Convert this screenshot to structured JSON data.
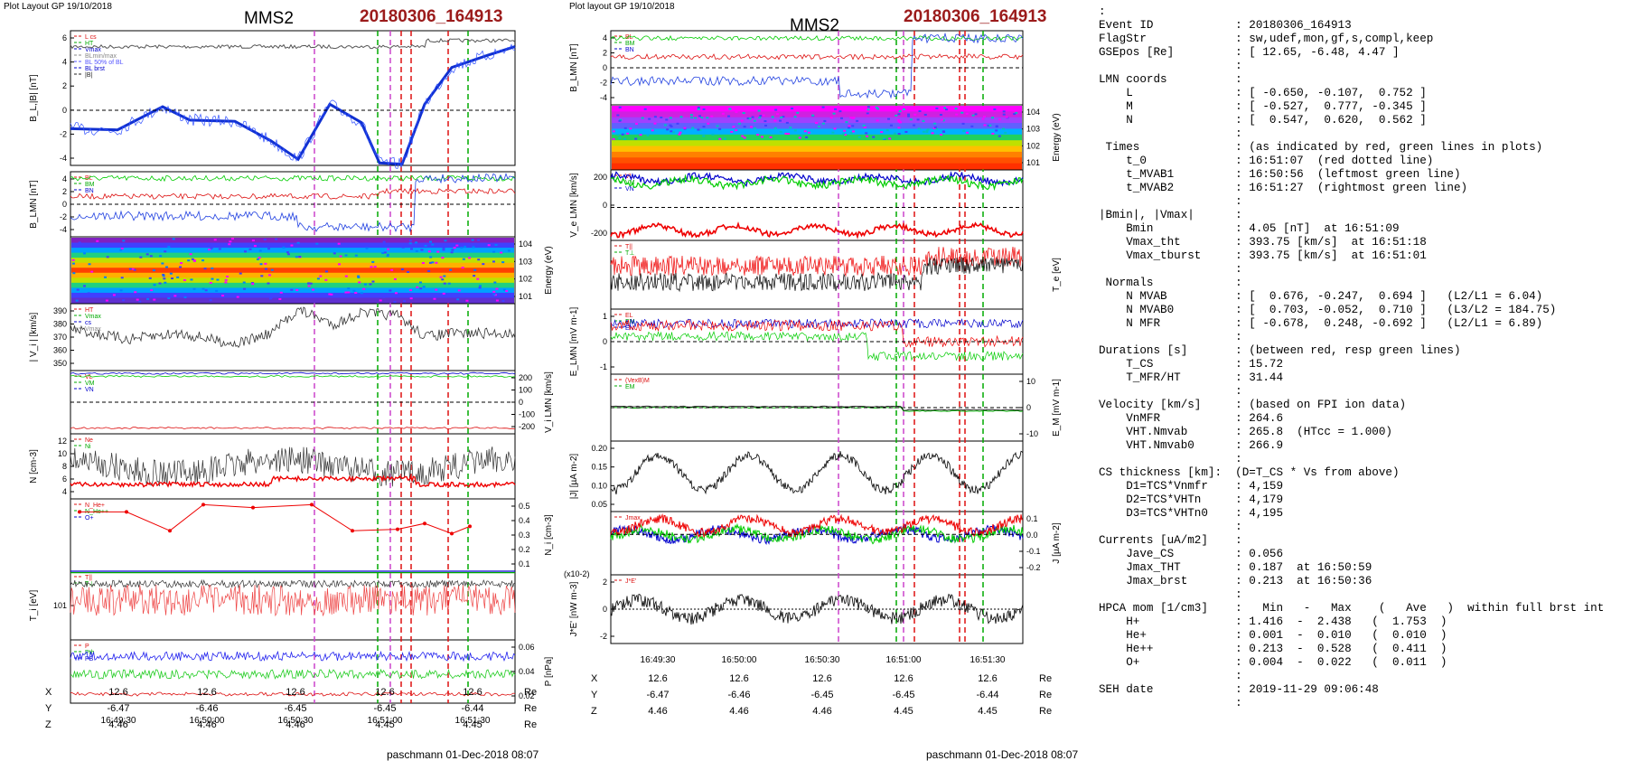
{
  "left": {
    "plot_label": "Plot Layout GP 19/10/2018",
    "spacecraft": "MMS2",
    "event": "20180306_164913",
    "footer": "paschmann 01-Dec-2018 08:07",
    "time_ticks": [
      "16:49:30",
      "16:50:00",
      "16:50:30",
      "16:51:00",
      "16:51:30"
    ],
    "coords": {
      "X": [
        "12.6",
        "12.6",
        "12.6",
        "12.6",
        "12.6"
      ],
      "Y": [
        "-6.47",
        "-6.46",
        "-6.45",
        "-6.45",
        "-6.44"
      ],
      "Z": [
        "4.46",
        "4.46",
        "4.46",
        "4.45",
        "4.45"
      ],
      "unit": "Re"
    },
    "panels": [
      {
        "ylabel": "B_L,|B| [nT]",
        "side": "left",
        "ticks": [
          "6",
          "4",
          "2",
          "0",
          "-2",
          "-4"
        ],
        "legend": [
          "L cs",
          "HT",
          "Vmax",
          "BLmin/max",
          "BL 50% of BL",
          "BL brst",
          "|B|"
        ]
      },
      {
        "ylabel": "B_LMN [nT]",
        "side": "left",
        "ticks": [
          "4",
          "2",
          "0",
          "-2",
          "-4"
        ],
        "legend": [
          "BL",
          "BM",
          "BN"
        ]
      },
      {
        "ylabel": "Energy (eV)",
        "side": "right",
        "ticks": [
          "10^4",
          "10^3",
          "10^2",
          "10^1"
        ],
        "legend": []
      },
      {
        "ylabel": "| V_i | [km/s]",
        "side": "left",
        "ticks": [
          "390",
          "380",
          "370",
          "360",
          "350"
        ],
        "legend": [
          "HT",
          "Vmax",
          "cs",
          "Vmax"
        ]
      },
      {
        "ylabel": "V_i LMN [km/s]",
        "side": "right",
        "ticks": [
          "200",
          "100",
          "0",
          "-100",
          "-200"
        ],
        "legend": [
          "VL",
          "VM",
          "VN"
        ]
      },
      {
        "ylabel": "N [cm^-3]",
        "side": "left",
        "ticks": [
          "12",
          "10",
          "8",
          "6",
          "4"
        ],
        "legend": [
          "Ne",
          "Ni"
        ]
      },
      {
        "ylabel": "N_i [cm^-3]",
        "side": "right",
        "ticks": [
          "0.5",
          "0.4",
          "0.3",
          "0.2",
          "0.1"
        ],
        "legend": [
          "N_He+",
          "N_He++",
          "O+"
        ]
      },
      {
        "ylabel": "T_i [eV]",
        "side": "left",
        "ticks": [
          "10^1"
        ],
        "legend": [
          "T||",
          "T⊥"
        ]
      },
      {
        "ylabel": "P [nPa]",
        "side": "right",
        "ticks": [
          "0.06",
          "0.04",
          "0.02"
        ],
        "legend": [
          "P",
          "Pth",
          "PB"
        ]
      }
    ]
  },
  "middle": {
    "plot_label": "Plot layout GP 19/10/2018",
    "spacecraft": "MMS2",
    "event": "20180306_164913",
    "footer": "paschmann 01-Dec-2018 08:07",
    "time_ticks": [
      "16:49:30",
      "16:50:00",
      "16:50:30",
      "16:51:00",
      "16:51:30"
    ],
    "coords": {
      "X": [
        "12.6",
        "12.6",
        "12.6",
        "12.6",
        "12.6"
      ],
      "Y": [
        "-6.47",
        "-6.46",
        "-6.45",
        "-6.45",
        "-6.44"
      ],
      "Z": [
        "4.46",
        "4.46",
        "4.46",
        "4.45",
        "4.45"
      ],
      "unit": "Re"
    },
    "panels": [
      {
        "ylabel": "B_LMN [nT]",
        "side": "left",
        "ticks": [
          "4",
          "2",
          "0",
          "-2",
          "-4"
        ],
        "legend": [
          "BL",
          "BM",
          "BN"
        ]
      },
      {
        "ylabel": "Energy (eV)",
        "side": "right",
        "ticks": [
          "10^4",
          "10^3",
          "10^2",
          "10^1"
        ],
        "legend": []
      },
      {
        "ylabel": "V_e LMN [km/s]",
        "side": "left",
        "ticks": [
          "200",
          "0",
          "-200"
        ],
        "legend": [
          "VL",
          "VM",
          "VN"
        ]
      },
      {
        "ylabel": "T_e [eV]",
        "side": "right",
        "ticks": [],
        "legend": [
          "T||",
          "T⊥"
        ]
      },
      {
        "ylabel": "E_LMN [mV m^-1]",
        "side": "left",
        "ticks": [
          "1",
          "0",
          "-1"
        ],
        "legend": [
          "EL",
          "EM",
          "EN"
        ]
      },
      {
        "ylabel": "E_M [mV m^-1]",
        "side": "right",
        "ticks": [
          "10",
          "0",
          "-10"
        ],
        "legend": [
          "(VexB)M",
          "EM"
        ]
      },
      {
        "ylabel": "|J| [µA m^-2]",
        "side": "left",
        "ticks": [
          "0.20",
          "0.15",
          "0.10",
          "0.05"
        ],
        "legend": []
      },
      {
        "ylabel": "J [µA m^-2]",
        "side": "right",
        "ticks": [
          "0.1",
          "0.0",
          "-0.1",
          "-0.2"
        ],
        "legend": [
          "Jmax"
        ]
      },
      {
        "ylabel": "J*E' [nW m^-3]",
        "side": "left",
        "ticks": [
          "2",
          "0",
          "-2"
        ],
        "legend": [
          "J*E'"
        ],
        "scale_note": "(x10^-2)"
      }
    ]
  },
  "info_lines": [
    ":",
    "Event ID            : 20180306_164913",
    "FlagStr             : sw,udef,mon,gf,s,compl,keep",
    "GSEpos [Re]         : [ 12.65, -6.48, 4.47 ]",
    "                    :",
    "LMN coords          :",
    "    L               : [ -0.650, -0.107,  0.752 ]",
    "    M               : [ -0.527,  0.777, -0.345 ]",
    "    N               : [  0.547,  0.620,  0.562 ]",
    "                    :",
    " Times              : (as indicated by red, green lines in plots)",
    "    t_0             : 16:51:07  (red dotted line)",
    "    t_MVAB1         : 16:50:56  (leftmost green line)",
    "    t_MVAB2         : 16:51:27  (rightmost green line)",
    "                    :",
    "|Bmin|, |Vmax|      :",
    "    Bmin            : 4.05 [nT]  at 16:51:09",
    "    Vmax_tht        : 393.75 [km/s]  at 16:51:18",
    "    Vmax_tburst     : 393.75 [km/s]  at 16:51:01",
    "                    :",
    " Normals            :",
    "    N MVAB          : [  0.676, -0.247,  0.694 ]   (L2/L1 = 6.04)",
    "    N MVAB0         : [  0.703, -0.052,  0.710 ]   (L3/L2 = 184.75)",
    "    N MFR           : [ -0.678,  0.248, -0.692 ]   (L2/L1 = 6.89)",
    "                    :",
    "Durations [s]       : (between red, resp green lines)",
    "    T_CS            : 15.72",
    "    T_MFR/HT        : 31.44",
    "                    :",
    "Velocity [km/s]     : (based on FPI ion data)",
    "    VnMFR           : 264.6",
    "    VHT.Nmvab       : 265.8  (HTcc = 1.000)",
    "    VHT.Nmvab0      : 266.9",
    "                    :",
    "CS thickness [km]:  (D=T_CS * Vs from above)",
    "    D1=TCS*Vnmfr    : 4,159",
    "    D2=TCS*VHTn     : 4,179",
    "    D3=TCS*VHTn0    : 4,195",
    "                    :",
    "Currents [uA/m2]    :",
    "    Jave_CS         : 0.056",
    "    Jmax_THT        : 0.187  at 16:50:59",
    "    Jmax_brst       : 0.213  at 16:50:36",
    "                    :",
    "HPCA mom [1/cm3]    :   Min   -   Max    (   Ave   )  within full brst int",
    "    H+              : 1.416  -  2.438   (  1.753  )",
    "    He+             : 0.001  -  0.010   (  0.010  )",
    "    He++            : 0.213  -  0.528   (  0.411  )",
    "    O+              : 0.004  -  0.022   (  0.011  )",
    "                    :",
    "SEH date            : 2019-11-29 09:06:48",
    "                    :"
  ],
  "chart_data": [
    {
      "type": "line",
      "title": "MMS2 20180306_164913",
      "xlabel": "",
      "x_ticks": [
        "16:49:30",
        "16:50:00",
        "16:50:30",
        "16:51:00",
        "16:51:30"
      ],
      "series": [
        {
          "name": "BL brst",
          "panel": "B_L,|B| [nT]",
          "x": [
            "16:49:15",
            "16:49:30",
            "16:49:45",
            "16:50:00",
            "16:50:15",
            "16:50:30",
            "16:50:45",
            "16:51:00",
            "16:51:15",
            "16:51:30",
            "16:51:45"
          ],
          "values": [
            -1.5,
            -1.5,
            0.3,
            -1.0,
            -1.0,
            -2.8,
            1.0,
            -4.5,
            2.0,
            4.5,
            5.2
          ]
        },
        {
          "name": "|B|",
          "panel": "B_L,|B| [nT]",
          "values": [
            5.2,
            5.2,
            5.3,
            5.3,
            5.2,
            5.4,
            5.3,
            5.0,
            5.3,
            5.6,
            5.8
          ]
        },
        {
          "name": "|Vi|",
          "panel": "| V_i | [km/s]",
          "values": [
            375,
            368,
            372,
            365,
            372,
            388,
            380,
            385,
            372,
            370,
            372
          ]
        },
        {
          "name": "Ni",
          "panel": "N [cm^-3]",
          "values": [
            8,
            9,
            9,
            8,
            9,
            10,
            9,
            9,
            8,
            8,
            8
          ]
        },
        {
          "name": "Ne",
          "panel": "N [cm^-3]",
          "values": [
            6,
            6,
            6.2,
            6.5,
            6.7,
            7,
            6.8,
            6.5,
            6.2,
            6,
            6
          ]
        },
        {
          "name": "N_He++",
          "panel": "N_i [cm^-3]",
          "values": [
            0.43,
            0.43,
            0.38,
            0.48,
            0.46,
            0.48,
            0.3,
            0.31,
            0.35,
            0.28,
            0.33
          ]
        }
      ]
    },
    {
      "type": "line",
      "title": "MMS2 20180306_164913",
      "xlabel": "",
      "x_ticks": [
        "16:49:30",
        "16:50:00",
        "16:50:30",
        "16:51:00",
        "16:51:30"
      ],
      "series": [
        {
          "name": "|J|",
          "panel": "|J| [µA m^-2]",
          "values": [
            0.12,
            0.08,
            0.15,
            0.07,
            0.17,
            0.06,
            0.18,
            0.1,
            0.14,
            0.07,
            0.12
          ]
        },
        {
          "name": "Ve L",
          "panel": "V_e LMN [km/s]",
          "values": [
            250,
            200,
            250,
            220,
            260,
            210,
            250,
            230,
            240,
            220,
            230
          ]
        }
      ]
    }
  ]
}
